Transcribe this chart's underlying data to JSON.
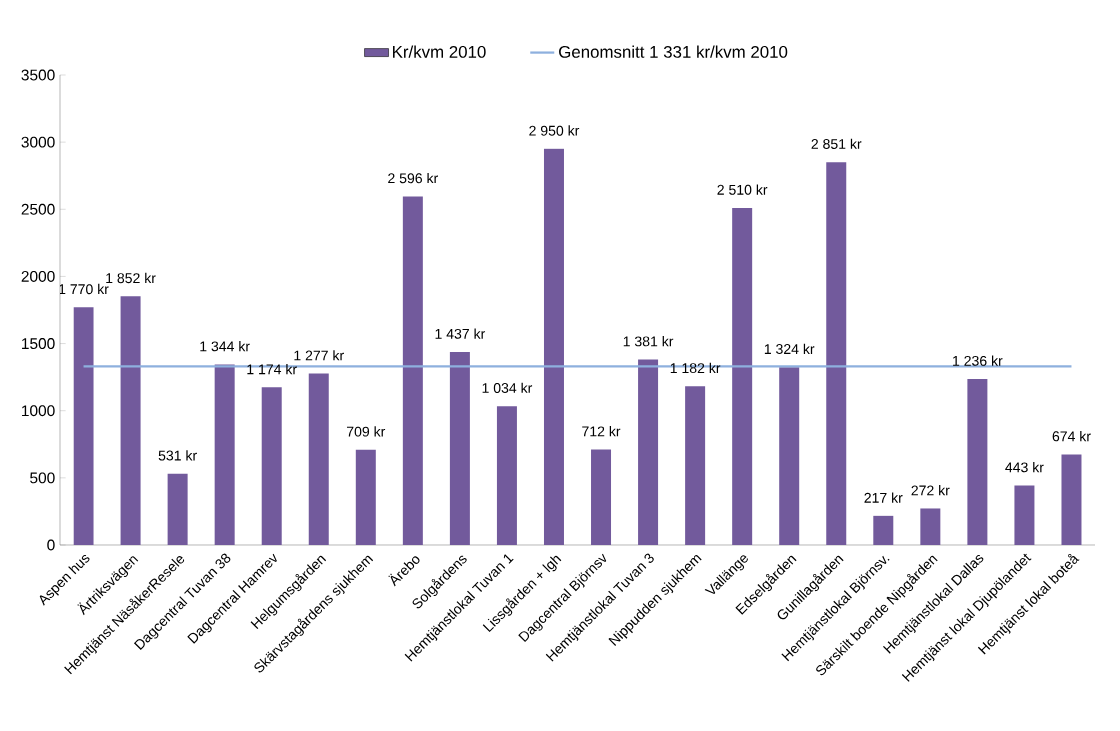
{
  "chart_data": {
    "type": "bar",
    "categories": [
      "Aspen hus",
      "Ärtriksvägen",
      "Hemtjänst NäsåkerResele",
      "Dagcentral Tuvan 38",
      "Dagcentral Hamrev",
      "Helgumsgården",
      "Skärvstagårdens sjukhem",
      "Ärebo",
      "Solgårdens",
      "Hemtjänstlokal Tuvan 1",
      "Lissgården + lgh",
      "Dagcentral Björnsv",
      "Hemtjänstlokal Tuvan 3",
      "Nippudden sjukhem",
      "Vallänge",
      "Edselgården",
      "Gunillagården",
      "Hemtjänstlokal Björnsv.",
      "Särskilt boende Nipgården",
      "Hemtjänstlokal Dallas",
      "Hemtjänst lokal Djupölandet",
      "Hemtjänst lokal boteå"
    ],
    "series": [
      {
        "name": "Kr/kvm 2010",
        "color": "#725a9c",
        "values": [
          1770,
          1852,
          531,
          1344,
          1174,
          1277,
          709,
          2596,
          1437,
          1034,
          2950,
          712,
          1381,
          1182,
          2510,
          1324,
          2851,
          217,
          272,
          1236,
          443,
          674
        ],
        "value_labels": [
          "1 770 kr",
          "1 852 kr",
          "531 kr",
          "1 344 kr",
          "1 174 kr",
          "1 277 kr",
          "709 kr",
          "2 596 kr",
          "1 437 kr",
          "1 034 kr",
          "2 950 kr",
          "712 kr",
          "1 381 kr",
          "1 182 kr",
          "2 510 kr",
          "1 324 kr",
          "2 851 kr",
          "217 kr",
          "272 kr",
          "1 236 kr",
          "443 kr",
          "674 kr"
        ]
      },
      {
        "name": "Genomsnitt 1 331 kr/kvm 2010",
        "type": "line",
        "color": "#8eb0de",
        "values": [
          1331,
          1331,
          1331,
          1331,
          1331,
          1331,
          1331,
          1331,
          1331,
          1331,
          1331,
          1331,
          1331,
          1331,
          1331,
          1331,
          1331,
          1331,
          1331,
          1331,
          1331,
          1331
        ]
      }
    ],
    "ylim": [
      0,
      3500
    ],
    "yticks": [
      0,
      500,
      1000,
      1500,
      2000,
      2500,
      3000,
      3500
    ],
    "legend": "top",
    "marker": "none"
  }
}
